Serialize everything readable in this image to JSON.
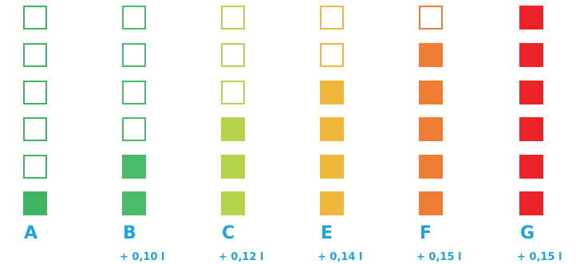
{
  "label_color": "#1ea3dc",
  "columns": [
    {
      "letter": "A",
      "extra": "",
      "filled": 1,
      "color": "#3fb564"
    },
    {
      "letter": "B",
      "extra": "+ 0,10 l",
      "filled": 2,
      "color": "#4cbb68"
    },
    {
      "letter": "C",
      "extra": "+ 0,12 l",
      "filled": 3,
      "color": "#b6d44a"
    },
    {
      "letter": "E",
      "extra": "+ 0,14 l",
      "filled": 4,
      "color": "#f1b73a"
    },
    {
      "letter": "F",
      "extra": "+ 0,15 l",
      "filled": 5,
      "color": "#ee7d33"
    },
    {
      "letter": "G",
      "extra": "+ 0,15 l",
      "filled": 6,
      "color": "#ed2327"
    }
  ],
  "squares_per_column": 6
}
